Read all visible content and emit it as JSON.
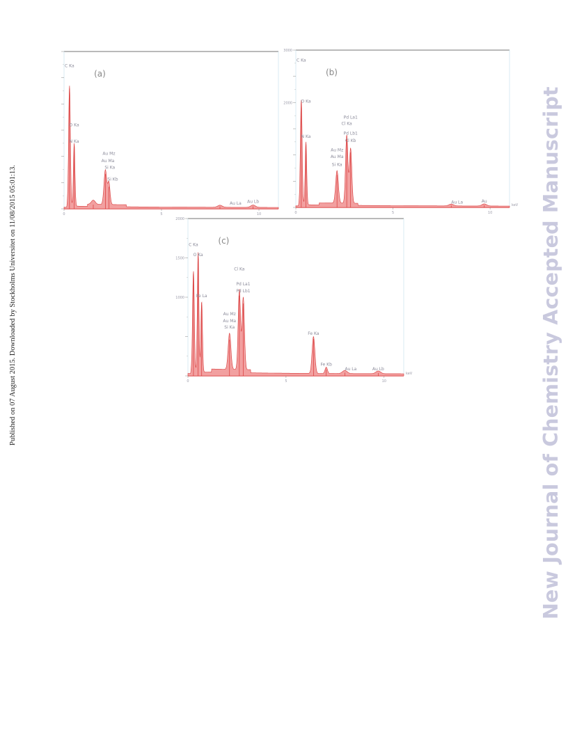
{
  "page": {
    "side_note": "Published on 07 August 2015. Downloaded by Stockholms Universitet on 11/08/2015 05:01:13.",
    "watermark": "New Journal of Chemistry Accepted Manuscript"
  },
  "colors": {
    "fill": "#f2a0a0",
    "line": "#d93a3a",
    "frame": "#444444",
    "frame_light": "#cfe6f0"
  },
  "chart_data": [
    {
      "type": "area",
      "title": "(a)",
      "xunit": "",
      "xlim": [
        0,
        11
      ],
      "ylim": [
        0,
        3000
      ],
      "xticks": [
        0,
        5,
        10
      ],
      "yticks": [
        0,
        500,
        1000,
        1500,
        2000,
        2500,
        3000
      ],
      "ytick_labels": [
        "",
        "",
        "",
        "",
        "",
        "",
        ""
      ],
      "peaks": [
        {
          "x": 0.28,
          "y": 2300,
          "w": 0.045
        },
        {
          "x": 0.52,
          "y": 1200,
          "w": 0.04
        },
        {
          "x": 1.5,
          "y": 80,
          "w": 0.1
        },
        {
          "x": 2.12,
          "y": 660,
          "w": 0.07
        },
        {
          "x": 2.3,
          "y": 420,
          "w": 0.06
        },
        {
          "x": 8.0,
          "y": 40,
          "w": 0.12
        },
        {
          "x": 9.7,
          "y": 45,
          "w": 0.12
        }
      ],
      "labels": [
        {
          "x": 0.28,
          "y": 2700,
          "text": "C Ka"
        },
        {
          "x": 0.52,
          "y": 1570,
          "text": "O Ka"
        },
        {
          "x": 0.52,
          "y": 1260,
          "text": "N Ka"
        },
        {
          "x": 2.3,
          "y": 1030,
          "text": "Au Mz"
        },
        {
          "x": 2.25,
          "y": 890,
          "text": "Au Ma"
        },
        {
          "x": 2.35,
          "y": 760,
          "text": "Si Ka"
        },
        {
          "x": 2.5,
          "y": 540,
          "text": "Si Kb"
        },
        {
          "x": 8.8,
          "y": 80,
          "text": "Au La"
        },
        {
          "x": 9.7,
          "y": 110,
          "text": "Au Lb"
        }
      ]
    },
    {
      "type": "area",
      "title": "(b)",
      "xunit": "keV",
      "xlim": [
        0,
        11
      ],
      "ylim": [
        0,
        3000
      ],
      "xticks": [
        0,
        5,
        10
      ],
      "yticks": [
        0,
        500,
        1000,
        1500,
        2000,
        2500,
        3000
      ],
      "ytick_labels": [
        "",
        "",
        "",
        "",
        "2000",
        "",
        "3000"
      ],
      "peaks": [
        {
          "x": 0.28,
          "y": 2000,
          "w": 0.045
        },
        {
          "x": 0.52,
          "y": 1200,
          "w": 0.04
        },
        {
          "x": 2.12,
          "y": 620,
          "w": 0.07
        },
        {
          "x": 2.62,
          "y": 1300,
          "w": 0.06
        },
        {
          "x": 2.82,
          "y": 1050,
          "w": 0.06
        },
        {
          "x": 8.0,
          "y": 35,
          "w": 0.12
        },
        {
          "x": 9.7,
          "y": 40,
          "w": 0.12
        }
      ],
      "labels": [
        {
          "x": 0.28,
          "y": 2780,
          "text": "C Ka"
        },
        {
          "x": 0.52,
          "y": 2000,
          "text": "O Ka"
        },
        {
          "x": 0.52,
          "y": 1330,
          "text": "N Ka"
        },
        {
          "x": 2.82,
          "y": 1690,
          "text": "Pd La1"
        },
        {
          "x": 2.62,
          "y": 1570,
          "text": "Cl Ka"
        },
        {
          "x": 2.82,
          "y": 1390,
          "text": "Pd Lb1"
        },
        {
          "x": 2.82,
          "y": 1250,
          "text": "Cl Kb"
        },
        {
          "x": 2.12,
          "y": 1070,
          "text": "Au Mz"
        },
        {
          "x": 2.12,
          "y": 940,
          "text": "Au Ma"
        },
        {
          "x": 2.12,
          "y": 790,
          "text": "Si Ka"
        },
        {
          "x": 8.3,
          "y": 70,
          "text": "Au La"
        },
        {
          "x": 9.7,
          "y": 90,
          "text": "Au"
        }
      ]
    },
    {
      "type": "area",
      "title": "(c)",
      "xunit": "keV",
      "xlim": [
        0,
        11
      ],
      "ylim": [
        0,
        2000
      ],
      "xticks": [
        0,
        5,
        10
      ],
      "yticks": [
        0,
        500,
        1000,
        1500,
        2000
      ],
      "ytick_labels": [
        "",
        "",
        "1000",
        "1500",
        "2000"
      ],
      "peaks": [
        {
          "x": 0.28,
          "y": 1280,
          "w": 0.045
        },
        {
          "x": 0.52,
          "y": 1520,
          "w": 0.04
        },
        {
          "x": 0.7,
          "y": 900,
          "w": 0.04
        },
        {
          "x": 2.12,
          "y": 460,
          "w": 0.07
        },
        {
          "x": 2.62,
          "y": 1020,
          "w": 0.06
        },
        {
          "x": 2.82,
          "y": 920,
          "w": 0.06
        },
        {
          "x": 6.4,
          "y": 470,
          "w": 0.07
        },
        {
          "x": 7.05,
          "y": 80,
          "w": 0.06
        },
        {
          "x": 8.0,
          "y": 40,
          "w": 0.12
        },
        {
          "x": 9.7,
          "y": 35,
          "w": 0.12
        }
      ],
      "labels": [
        {
          "x": 0.28,
          "y": 1650,
          "text": "C Ka"
        },
        {
          "x": 0.52,
          "y": 1520,
          "text": "O Ka"
        },
        {
          "x": 0.7,
          "y": 1000,
          "text": "Fe La"
        },
        {
          "x": 2.62,
          "y": 1340,
          "text": "Cl Ka"
        },
        {
          "x": 2.82,
          "y": 1150,
          "text": "Pd La1"
        },
        {
          "x": 2.82,
          "y": 1060,
          "text": "Pd Lb1"
        },
        {
          "x": 2.12,
          "y": 770,
          "text": "Au Mz"
        },
        {
          "x": 2.12,
          "y": 680,
          "text": "Au Ma"
        },
        {
          "x": 2.12,
          "y": 600,
          "text": "Si Ka"
        },
        {
          "x": 6.4,
          "y": 520,
          "text": "Fe Ka"
        },
        {
          "x": 7.05,
          "y": 130,
          "text": "Fe Kb"
        },
        {
          "x": 8.3,
          "y": 70,
          "text": "Au La"
        },
        {
          "x": 9.7,
          "y": 70,
          "text": "Au Lb"
        }
      ]
    }
  ]
}
